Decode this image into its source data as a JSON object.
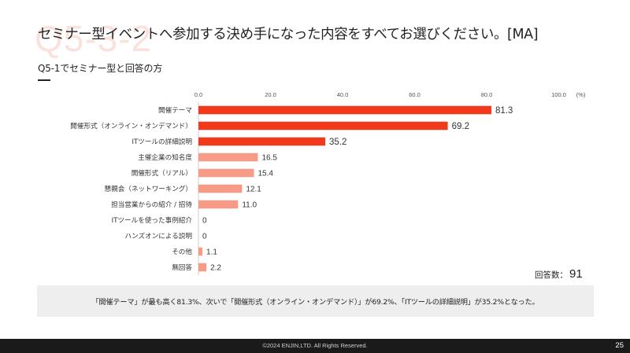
{
  "header": {
    "watermark": "Q5-3-2",
    "title": "セミナー型イベントへ参加する決め手になった内容をすべてお選びください。[MA]",
    "subtitle": "Q5-1でセミナー型と回答の方"
  },
  "chart_data": {
    "type": "bar",
    "orientation": "horizontal",
    "unit": "(%)",
    "xlim": [
      0,
      100
    ],
    "ticks": [
      "0.0",
      "20.0",
      "40.0",
      "60.0",
      "80.0",
      "100.0"
    ],
    "categories": [
      "開催テーマ",
      "開催形式（オンライン・オンデマンド）",
      "ITツールの詳細説明",
      "主催企業の知名度",
      "開催形式（リアル）",
      "懇親会（ネットワーキング）",
      "担当営業からの紹介 / 招待",
      "ITツールを使った事例紹介",
      "ハンズオンによる説明",
      "その他",
      "無回答"
    ],
    "values": [
      81.3,
      69.2,
      35.2,
      16.5,
      15.4,
      12.1,
      11.0,
      0,
      0,
      1.1,
      2.2
    ],
    "value_labels": [
      "81.3",
      "69.2",
      "35.2",
      "16.5",
      "15.4",
      "12.1",
      "11.0",
      "0",
      "0",
      "1.1",
      "2.2"
    ],
    "top_n_highlight": 3,
    "colors": {
      "highlight": "#f2391c",
      "normal": "#f99a86",
      "highlight_label": "#f2391c",
      "axis": "#cccccc"
    }
  },
  "respondents": {
    "label": "回答数：",
    "count": "91"
  },
  "summary": "「開催テーマ」が最も高く81.3%、次いで「開催形式（オンライン・オンデマンド）」が69.2%、「ITツールの詳細説明」が35.2%となった。",
  "footer": {
    "copyright": "©2024 ENJIN,LTD. All Rights Reserved.",
    "page": "25"
  }
}
